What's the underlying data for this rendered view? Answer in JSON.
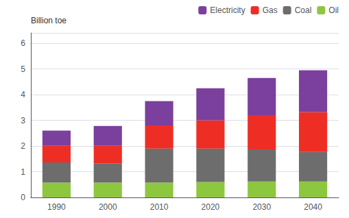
{
  "chart_data": {
    "type": "bar",
    "stacked": true,
    "y_label": "Billion toe",
    "categories": [
      1990,
      2000,
      2010,
      2020,
      2030,
      2040
    ],
    "series": [
      {
        "name": "Oil",
        "color": "#8dc63f",
        "values": [
          0.58,
          0.58,
          0.58,
          0.6,
          0.62,
          0.62
        ]
      },
      {
        "name": "Coal",
        "color": "#6d6d6d",
        "values": [
          0.78,
          0.75,
          1.32,
          1.3,
          1.25,
          1.15
        ]
      },
      {
        "name": "Gas",
        "color": "#ee2e24",
        "values": [
          0.65,
          0.68,
          0.9,
          1.1,
          1.33,
          1.55
        ]
      },
      {
        "name": "Electricity",
        "color": "#7b3f9e",
        "values": [
          0.59,
          0.77,
          0.95,
          1.25,
          1.45,
          1.63
        ]
      }
    ],
    "ylim": [
      0,
      6.4
    ],
    "yticks": [
      0,
      1,
      2,
      3,
      4,
      5,
      6
    ],
    "grid": true,
    "legend": "upper right"
  }
}
